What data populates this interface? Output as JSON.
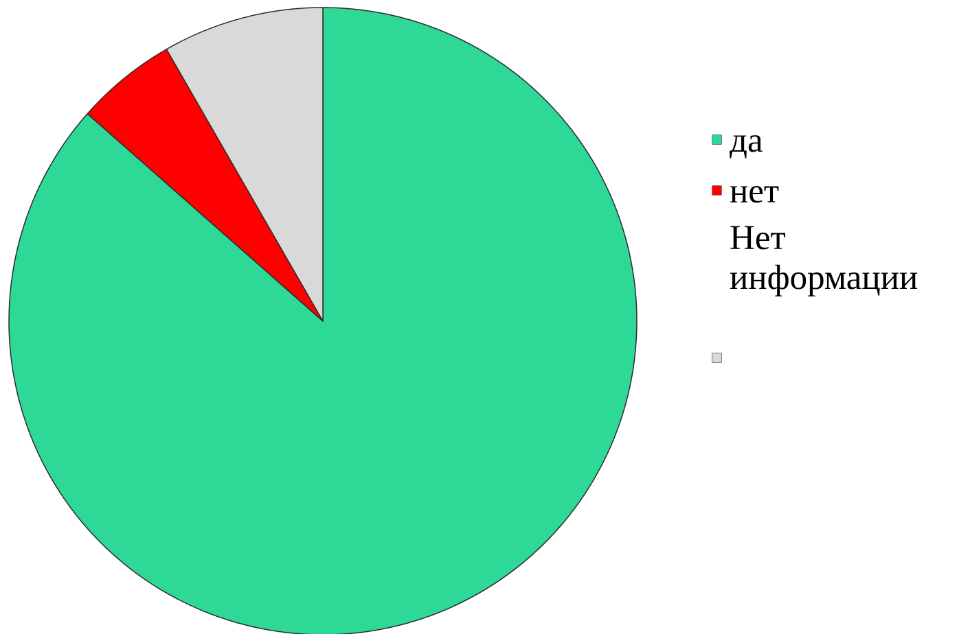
{
  "chart_data": {
    "type": "pie",
    "title": "",
    "categories": [
      "да",
      "нет",
      "Нет информации"
    ],
    "values": [
      86.5,
      5.2,
      8.3
    ],
    "unit": "percent",
    "start_angle": "12 o'clock",
    "direction": "clockwise",
    "legend": "right",
    "colors": {
      "да": "#2ed897",
      "нет": "#ff0000",
      "Нет информации": "#d9d9d9"
    }
  }
}
